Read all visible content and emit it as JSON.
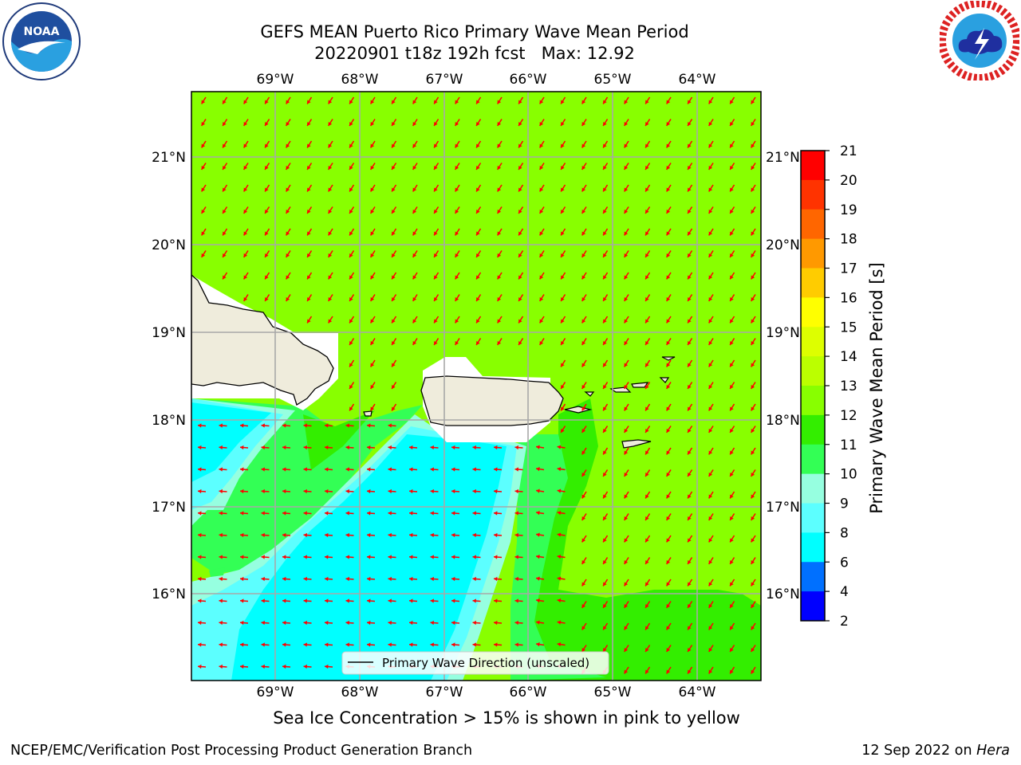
{
  "header": {
    "title_line1": "GEFS MEAN Puerto Rico Primary Wave Mean Period",
    "title_line2": "20220901 t18z 192h fcst   Max: 12.92"
  },
  "logos": {
    "left": {
      "text": "NOAA",
      "icon": "noaa-logo-icon"
    },
    "right": {
      "icon": "national-weather-service-logo-icon"
    }
  },
  "map": {
    "lon_labels": [
      "69°W",
      "68°W",
      "67°W",
      "66°W",
      "65°W",
      "64°W"
    ],
    "lat_labels": [
      "21°N",
      "20°N",
      "19°N",
      "18°N",
      "17°N",
      "16°N"
    ],
    "legend_label": "Primary Wave Direction (unscaled)",
    "arrow_color": "#ff0000",
    "land_color": "#efecdc"
  },
  "colorbar": {
    "label": "Primary Wave Mean Period [s]",
    "ticks": [
      "2",
      "4",
      "6",
      "8",
      "9",
      "10",
      "11",
      "12",
      "13",
      "14",
      "15",
      "16",
      "17",
      "18",
      "19",
      "20",
      "21"
    ],
    "colors": [
      "#0000ff",
      "#0070ff",
      "#00ffff",
      "#5cffff",
      "#96ffe0",
      "#33ff55",
      "#33ee00",
      "#88ff00",
      "#bbff00",
      "#ddff00",
      "#ffff00",
      "#ffcc00",
      "#ff9900",
      "#ff6600",
      "#ff3300",
      "#ff0000"
    ]
  },
  "note": "Sea Ice Concentration > 15% is shown in pink to yellow",
  "footer": {
    "left": "NCEP/EMC/Verification Post Processing Product Generation Branch",
    "date": "12 Sep 2022 on",
    "host": "Hera"
  }
}
